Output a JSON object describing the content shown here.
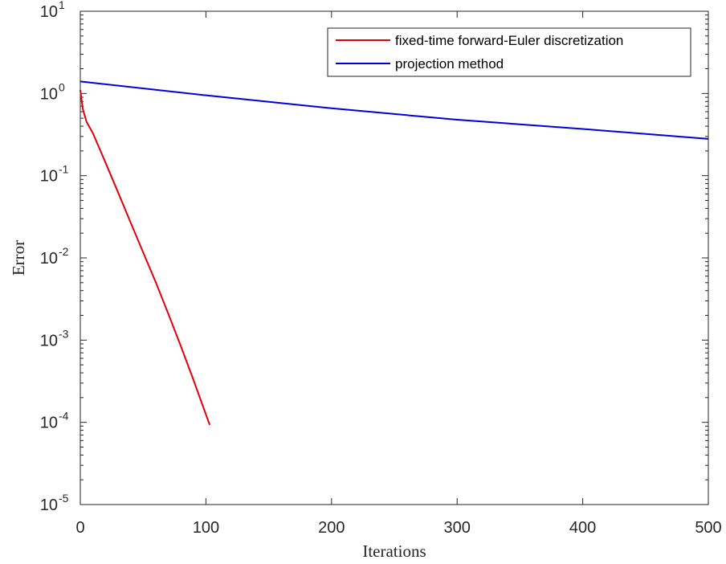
{
  "chart_data": {
    "type": "line",
    "xlabel": "Iterations",
    "ylabel": "Error",
    "xlim": [
      0,
      500
    ],
    "ylim_log10": [
      -5,
      1
    ],
    "y_scale": "log",
    "grid": false,
    "legend_position": "top-right",
    "x_ticks": [
      "0",
      "100",
      "200",
      "300",
      "400",
      "500"
    ],
    "y_ticks": [
      {
        "base": "10",
        "exp": "1"
      },
      {
        "base": "10",
        "exp": "0"
      },
      {
        "base": "10",
        "exp": "-1"
      },
      {
        "base": "10",
        "exp": "-2"
      },
      {
        "base": "10",
        "exp": "-3"
      },
      {
        "base": "10",
        "exp": "-4"
      },
      {
        "base": "10",
        "exp": "-5"
      }
    ],
    "series": [
      {
        "name": "fixed-time forward-Euler discretization",
        "color": "#e3000b",
        "x": [
          0,
          2,
          5,
          10,
          20,
          30,
          40,
          50,
          60,
          70,
          80,
          90,
          103
        ],
        "y": [
          1.1,
          0.65,
          0.45,
          0.33,
          0.145,
          0.063,
          0.027,
          0.0117,
          0.0051,
          0.0021,
          0.00085,
          0.00033,
          9.3e-05
        ]
      },
      {
        "name": "projection method",
        "color": "#0000e0",
        "x": [
          0,
          100,
          200,
          300,
          400,
          500
        ],
        "y": [
          1.4,
          0.95,
          0.66,
          0.48,
          0.37,
          0.28
        ]
      }
    ]
  }
}
